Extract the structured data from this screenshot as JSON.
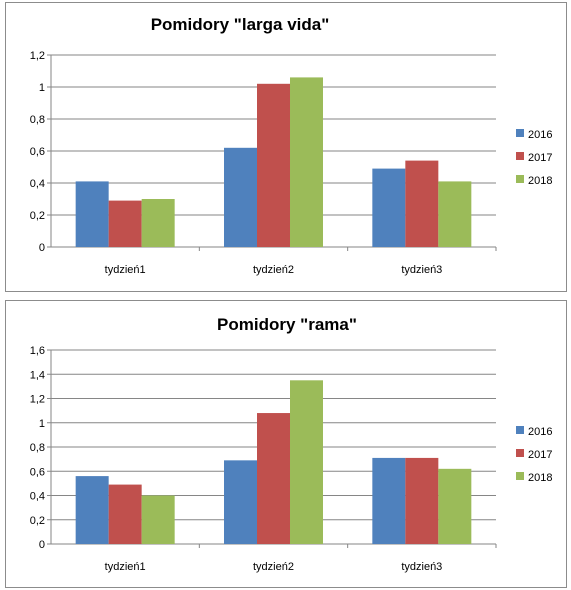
{
  "chart_data": [
    {
      "type": "bar",
      "title": "Pomidory \"larga vida\"",
      "categories": [
        "tydzień1",
        "tydzień2",
        "tydzień3"
      ],
      "series": [
        {
          "name": "2016",
          "color": "#4F81BD",
          "values": [
            0.41,
            0.62,
            0.49
          ]
        },
        {
          "name": "2017",
          "color": "#C0504D",
          "values": [
            0.29,
            1.02,
            0.54
          ]
        },
        {
          "name": "2018",
          "color": "#9BBB59",
          "values": [
            0.3,
            1.06,
            0.41
          ]
        }
      ],
      "ylim": [
        0,
        1.2
      ],
      "yticks": [
        "0",
        "0,2",
        "0,4",
        "0,6",
        "0,8",
        "1",
        "1,2"
      ],
      "grid": true,
      "legend": "right"
    },
    {
      "type": "bar",
      "title": "Pomidory \"rama\"",
      "categories": [
        "tydzień1",
        "tydzień2",
        "tydzień3"
      ],
      "series": [
        {
          "name": "2016",
          "color": "#4F81BD",
          "values": [
            0.56,
            0.69,
            0.71
          ]
        },
        {
          "name": "2017",
          "color": "#C0504D",
          "values": [
            0.49,
            1.08,
            0.71
          ]
        },
        {
          "name": "2018",
          "color": "#9BBB59",
          "values": [
            0.4,
            1.35,
            0.62
          ]
        }
      ],
      "ylim": [
        0,
        1.6
      ],
      "yticks": [
        "0",
        "0,2",
        "0,4",
        "0,6",
        "0,8",
        "1",
        "1,2",
        "1,4",
        "1,6"
      ],
      "grid": true,
      "legend": "right"
    }
  ]
}
